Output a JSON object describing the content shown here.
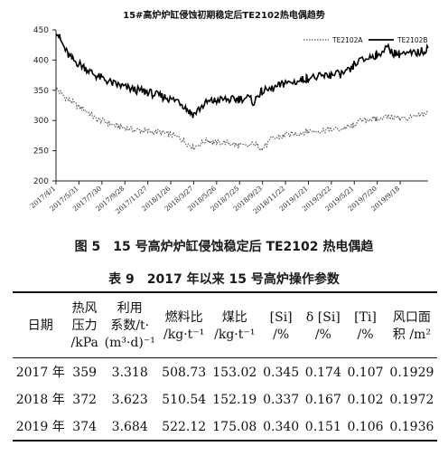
{
  "chart_data": {
    "type": "line",
    "title": "15#高炉炉缸侵蚀初期稳定后TE2102热电偶趋势",
    "ylim": [
      200,
      450
    ],
    "yticks": [
      200,
      250,
      300,
      350,
      400,
      450
    ],
    "xticks": [
      "2017/4/1",
      "2017/5/31",
      "2017/7/30",
      "2017/9/28",
      "2017/11/27",
      "2018/1/26",
      "2018/3/27",
      "2018/5/26",
      "2018/7/25",
      "2018/9/23",
      "2018/11/22",
      "2019/1/21",
      "2019/3/22",
      "2019/5/21",
      "2019/7/20",
      "2019/9/18"
    ],
    "legend_position": "top-right",
    "grid": false,
    "series": [
      {
        "name": "TE2102A",
        "color": "#555555",
        "style": "dotted",
        "points": [
          [
            "2017/4/1",
            352
          ],
          [
            "2017/4/15",
            345
          ],
          [
            "2017/5/1",
            335
          ],
          [
            "2017/5/15",
            330
          ],
          [
            "2017/5/31",
            322
          ],
          [
            "2017/6/15",
            318
          ],
          [
            "2017/7/1",
            310
          ],
          [
            "2017/7/15",
            302
          ],
          [
            "2017/7/30",
            300
          ],
          [
            "2017/8/15",
            296
          ],
          [
            "2017/9/1",
            292
          ],
          [
            "2017/9/15",
            290
          ],
          [
            "2017/9/28",
            288
          ],
          [
            "2017/10/15",
            285
          ],
          [
            "2017/11/1",
            284
          ],
          [
            "2017/11/15",
            283
          ],
          [
            "2017/11/27",
            282
          ],
          [
            "2017/12/15",
            281
          ],
          [
            "2018/1/1",
            280
          ],
          [
            "2018/1/15",
            278
          ],
          [
            "2018/1/26",
            277
          ],
          [
            "2018/2/15",
            272
          ],
          [
            "2018/3/1",
            266
          ],
          [
            "2018/3/15",
            260
          ],
          [
            "2018/3/27",
            256
          ],
          [
            "2018/4/15",
            262
          ],
          [
            "2018/5/1",
            268
          ],
          [
            "2018/5/15",
            265
          ],
          [
            "2018/5/26",
            263
          ],
          [
            "2018/6/15",
            264
          ],
          [
            "2018/7/1",
            262
          ],
          [
            "2018/7/15",
            260
          ],
          [
            "2018/7/25",
            258
          ],
          [
            "2018/8/15",
            257
          ],
          [
            "2018/9/1",
            262
          ],
          [
            "2018/9/15",
            256
          ],
          [
            "2018/9/23",
            253
          ],
          [
            "2018/10/15",
            268
          ],
          [
            "2018/11/1",
            272
          ],
          [
            "2018/11/15",
            274
          ],
          [
            "2018/11/22",
            276
          ],
          [
            "2018/12/15",
            278
          ],
          [
            "2019/1/1",
            280
          ],
          [
            "2019/1/15",
            282
          ],
          [
            "2019/1/21",
            282
          ],
          [
            "2019/2/15",
            283
          ],
          [
            "2019/3/1",
            284
          ],
          [
            "2019/3/15",
            285
          ],
          [
            "2019/3/22",
            285
          ],
          [
            "2019/4/15",
            286
          ],
          [
            "2019/5/1",
            289
          ],
          [
            "2019/5/15",
            290
          ],
          [
            "2019/5/21",
            295
          ],
          [
            "2019/6/15",
            300
          ],
          [
            "2019/7/1",
            303
          ],
          [
            "2019/7/15",
            302
          ],
          [
            "2019/7/20",
            304
          ],
          [
            "2019/8/15",
            306
          ],
          [
            "2019/9/1",
            305
          ],
          [
            "2019/9/15",
            304
          ],
          [
            "2019/9/18",
            303
          ],
          [
            "2019/10/15",
            304
          ],
          [
            "2019/11/1",
            306
          ],
          [
            "2019/11/15",
            310
          ],
          [
            "2019/11/30",
            312
          ]
        ]
      },
      {
        "name": "TE2102B",
        "color": "#000000",
        "style": "solid",
        "points": [
          [
            "2017/4/1",
            450
          ],
          [
            "2017/4/15",
            430
          ],
          [
            "2017/5/1",
            410
          ],
          [
            "2017/5/15",
            400
          ],
          [
            "2017/5/31",
            394
          ],
          [
            "2017/6/15",
            388
          ],
          [
            "2017/7/1",
            380
          ],
          [
            "2017/7/15",
            374
          ],
          [
            "2017/7/30",
            370
          ],
          [
            "2017/8/15",
            365
          ],
          [
            "2017/9/1",
            360
          ],
          [
            "2017/9/15",
            358
          ],
          [
            "2017/9/28",
            355
          ],
          [
            "2017/10/15",
            352
          ],
          [
            "2017/11/1",
            350
          ],
          [
            "2017/11/15",
            348
          ],
          [
            "2017/11/27",
            347
          ],
          [
            "2017/12/15",
            343
          ],
          [
            "2018/1/1",
            340
          ],
          [
            "2018/1/15",
            338
          ],
          [
            "2018/1/26",
            335
          ],
          [
            "2018/2/15",
            333
          ],
          [
            "2018/3/1",
            325
          ],
          [
            "2018/3/15",
            315
          ],
          [
            "2018/3/27",
            310
          ],
          [
            "2018/4/15",
            322
          ],
          [
            "2018/5/1",
            330
          ],
          [
            "2018/5/15",
            332
          ],
          [
            "2018/5/26",
            333
          ],
          [
            "2018/6/15",
            335
          ],
          [
            "2018/7/1",
            334
          ],
          [
            "2018/7/15",
            335
          ],
          [
            "2018/7/25",
            336
          ],
          [
            "2018/8/15",
            338
          ],
          [
            "2018/9/1",
            330
          ],
          [
            "2018/9/15",
            345
          ],
          [
            "2018/9/23",
            348
          ],
          [
            "2018/10/15",
            352
          ],
          [
            "2018/11/1",
            356
          ],
          [
            "2018/11/15",
            360
          ],
          [
            "2018/11/22",
            362
          ],
          [
            "2018/12/15",
            364
          ],
          [
            "2019/1/1",
            366
          ],
          [
            "2019/1/15",
            370
          ],
          [
            "2019/1/21",
            370
          ],
          [
            "2019/2/15",
            372
          ],
          [
            "2019/3/1",
            373
          ],
          [
            "2019/3/15",
            375
          ],
          [
            "2019/3/22",
            375
          ],
          [
            "2019/4/15",
            377
          ],
          [
            "2019/5/1",
            380
          ],
          [
            "2019/5/15",
            384
          ],
          [
            "2019/5/21",
            395
          ],
          [
            "2019/6/15",
            400
          ],
          [
            "2019/7/1",
            405
          ],
          [
            "2019/7/15",
            408
          ],
          [
            "2019/7/20",
            410
          ],
          [
            "2019/8/15",
            420
          ],
          [
            "2019/9/1",
            412
          ],
          [
            "2019/9/15",
            410
          ],
          [
            "2019/9/18",
            408
          ],
          [
            "2019/10/15",
            410
          ],
          [
            "2019/11/1",
            412
          ],
          [
            "2019/11/15",
            415
          ],
          [
            "2019/11/30",
            420
          ]
        ]
      }
    ]
  },
  "figure_caption": "图 5　15 号高炉炉缸侵蚀稳定后 TE2102 热电偶趋",
  "table": {
    "title": "表 9　2017 年以来 15 号高炉操作参数",
    "headers": [
      [
        "日期"
      ],
      [
        "热风",
        "压力",
        "/kPa"
      ],
      [
        "利用",
        "系数/t·",
        "(m³·d)⁻¹"
      ],
      [
        "燃料比",
        "/kg·t⁻¹"
      ],
      [
        "煤比",
        "/kg·t⁻¹"
      ],
      [
        "[Si]",
        "/%"
      ],
      [
        "δ [Si]",
        "/%"
      ],
      [
        "[Ti]",
        "/%"
      ],
      [
        "风口面",
        "积 /m²"
      ]
    ],
    "rows": [
      [
        "2017 年",
        "359",
        "3.318",
        "508.73",
        "153.02",
        "0.345",
        "0.174",
        "0.107",
        "0.1929"
      ],
      [
        "2018 年",
        "372",
        "3.623",
        "510.54",
        "152.19",
        "0.337",
        "0.167",
        "0.102",
        "0.1972"
      ],
      [
        "2019 年",
        "374",
        "3.684",
        "522.12",
        "175.08",
        "0.340",
        "0.151",
        "0.106",
        "0.1936"
      ]
    ]
  }
}
